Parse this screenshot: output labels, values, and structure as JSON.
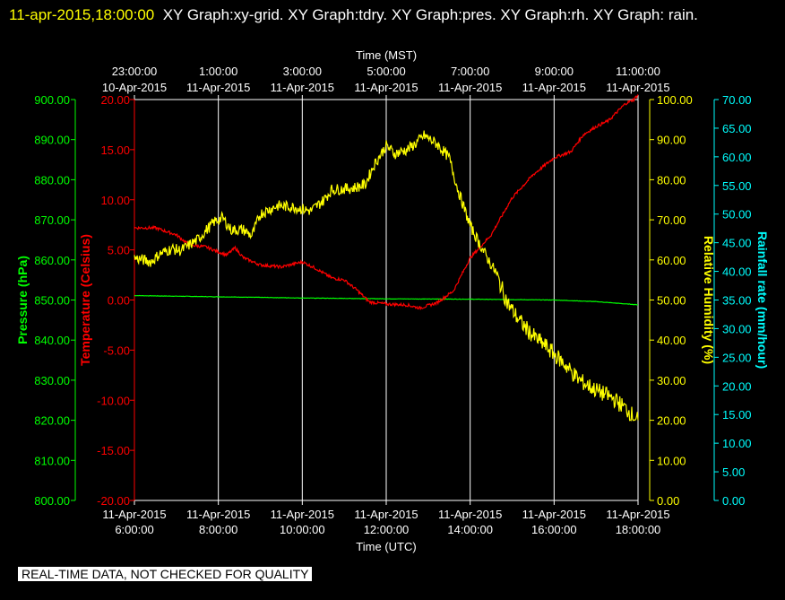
{
  "header": {
    "timestamp": "11-apr-2015,18:00:00",
    "graphs_text": "XY Graph:xy-grid.  XY Graph:tdry.  XY Graph:pres.  XY Graph:rh.  XY Graph: rain."
  },
  "footer_note": "REAL-TIME DATA, NOT CHECKED FOR QUALITY",
  "colors": {
    "background": "#000000",
    "grid": "#ffffff",
    "pressure": "#00ff00",
    "temperature": "#ff0000",
    "humidity": "#ffff00",
    "rain": "#00ffff",
    "top_axis_text": "#ffffff"
  },
  "chart_data": {
    "type": "line",
    "title": "",
    "x_axis_bottom": {
      "label": "Time (UTC)",
      "range_hours": [
        6,
        18
      ],
      "ticks": [
        {
          "hour": 6,
          "date": "11-Apr-2015",
          "time": "6:00:00"
        },
        {
          "hour": 8,
          "date": "11-Apr-2015",
          "time": "8:00:00"
        },
        {
          "hour": 10,
          "date": "11-Apr-2015",
          "time": "10:00:00"
        },
        {
          "hour": 12,
          "date": "11-Apr-2015",
          "time": "12:00:00"
        },
        {
          "hour": 14,
          "date": "11-Apr-2015",
          "time": "14:00:00"
        },
        {
          "hour": 16,
          "date": "11-Apr-2015",
          "time": "16:00:00"
        },
        {
          "hour": 18,
          "date": "11-Apr-2015",
          "time": "18:00:00"
        }
      ]
    },
    "x_axis_top": {
      "label": "Time (MST)",
      "ticks": [
        {
          "hour": 6,
          "time": "23:00:00",
          "date": "10-Apr-2015"
        },
        {
          "hour": 8,
          "time": "1:00:00",
          "date": "11-Apr-2015"
        },
        {
          "hour": 10,
          "time": "3:00:00",
          "date": "11-Apr-2015"
        },
        {
          "hour": 12,
          "time": "5:00:00",
          "date": "11-Apr-2015"
        },
        {
          "hour": 14,
          "time": "7:00:00",
          "date": "11-Apr-2015"
        },
        {
          "hour": 16,
          "time": "9:00:00",
          "date": "11-Apr-2015"
        },
        {
          "hour": 18,
          "time": "11:00:00",
          "date": "11-Apr-2015"
        }
      ]
    },
    "axes": {
      "pressure": {
        "label": "Pressure (hPa)",
        "range": [
          800,
          900
        ],
        "ticks": [
          "800.00",
          "810.00",
          "820.00",
          "830.00",
          "840.00",
          "850.00",
          "860.00",
          "870.00",
          "880.00",
          "890.00",
          "900.00"
        ]
      },
      "temperature": {
        "label": "Temperature (Celsius)",
        "range": [
          -20,
          20
        ],
        "ticks": [
          "-20.00",
          "-15.00",
          "-10.00",
          "-5.00",
          "0.00",
          "5.00",
          "10.00",
          "15.00",
          "20.00"
        ]
      },
      "humidity": {
        "label": "Relative Humidity (%)",
        "range": [
          0,
          100
        ],
        "ticks": [
          "0.00",
          "10.00",
          "20.00",
          "30.00",
          "40.00",
          "50.00",
          "60.00",
          "70.00",
          "80.00",
          "90.00",
          "100.00"
        ]
      },
      "rain": {
        "label": "Rainfall rate (mm/hour)",
        "range": [
          0,
          70
        ],
        "ticks": [
          "0.00",
          "5.00",
          "10.00",
          "15.00",
          "20.00",
          "25.00",
          "30.00",
          "35.00",
          "40.00",
          "45.00",
          "50.00",
          "55.00",
          "60.00",
          "65.00",
          "70.00"
        ]
      }
    },
    "grid": "vertical",
    "series": [
      {
        "key": "pressure",
        "axis": "pressure",
        "points": [
          [
            6,
            851.1
          ],
          [
            8,
            850.8
          ],
          [
            10,
            850.5
          ],
          [
            12,
            850.3
          ],
          [
            14,
            850.2
          ],
          [
            16,
            850.0
          ],
          [
            17,
            849.6
          ],
          [
            18,
            848.8
          ]
        ]
      },
      {
        "key": "temperature",
        "axis": "temperature",
        "points": [
          [
            6,
            7.2
          ],
          [
            6.5,
            7.2
          ],
          [
            7,
            6.5
          ],
          [
            7.3,
            5.5
          ],
          [
            7.7,
            5.3
          ],
          [
            8,
            4.8
          ],
          [
            8.2,
            4.5
          ],
          [
            8.4,
            5.2
          ],
          [
            8.6,
            4.2
          ],
          [
            9,
            3.5
          ],
          [
            9.5,
            3.3
          ],
          [
            10,
            3.8
          ],
          [
            10.3,
            3.2
          ],
          [
            10.7,
            2.2
          ],
          [
            11,
            2.0
          ],
          [
            11.3,
            1.0
          ],
          [
            11.6,
            -0.2
          ],
          [
            12,
            -0.4
          ],
          [
            12.5,
            -0.5
          ],
          [
            12.8,
            -0.8
          ],
          [
            13.2,
            -0.3
          ],
          [
            13.6,
            0.9
          ],
          [
            14,
            4.2
          ],
          [
            14.5,
            6.5
          ],
          [
            15,
            10.2
          ],
          [
            15.5,
            12.5
          ],
          [
            16,
            14.2
          ],
          [
            16.4,
            14.8
          ],
          [
            16.7,
            16.5
          ],
          [
            17,
            17.3
          ],
          [
            17.3,
            17.9
          ],
          [
            17.7,
            19.6
          ],
          [
            17.9,
            20.0
          ],
          [
            18,
            20.5
          ]
        ]
      },
      {
        "key": "humidity",
        "axis": "humidity",
        "points": [
          [
            6,
            60.5
          ],
          [
            6.4,
            59.5
          ],
          [
            6.6,
            61.5
          ],
          [
            6.9,
            62.8
          ],
          [
            7.1,
            62.3
          ],
          [
            7.5,
            65.0
          ],
          [
            7.9,
            69.5
          ],
          [
            8.1,
            70.5
          ],
          [
            8.3,
            67.5
          ],
          [
            8.6,
            67.5
          ],
          [
            8.8,
            66.0
          ],
          [
            9.0,
            71.5
          ],
          [
            9.4,
            73.5
          ],
          [
            9.8,
            73.2
          ],
          [
            10.2,
            72.2
          ],
          [
            10.5,
            74.8
          ],
          [
            10.7,
            77.5
          ],
          [
            11.2,
            77.9
          ],
          [
            11.5,
            78.8
          ],
          [
            11.7,
            83.5
          ],
          [
            12.0,
            88.5
          ],
          [
            12.2,
            86.5
          ],
          [
            12.5,
            87.5
          ],
          [
            12.7,
            89.0
          ],
          [
            12.9,
            91.0
          ],
          [
            13.2,
            89.0
          ],
          [
            13.5,
            85.5
          ],
          [
            13.7,
            77.8
          ],
          [
            14.0,
            68.5
          ],
          [
            14.3,
            62.5
          ],
          [
            14.6,
            57.0
          ],
          [
            14.9,
            49.0
          ],
          [
            15.2,
            44.5
          ],
          [
            15.5,
            41.0
          ],
          [
            15.8,
            38.5
          ],
          [
            16.2,
            34.5
          ],
          [
            16.6,
            30.0
          ],
          [
            17.0,
            27.5
          ],
          [
            17.4,
            25.5
          ],
          [
            17.7,
            23.0
          ],
          [
            18.0,
            20.0
          ]
        ]
      }
    ]
  }
}
